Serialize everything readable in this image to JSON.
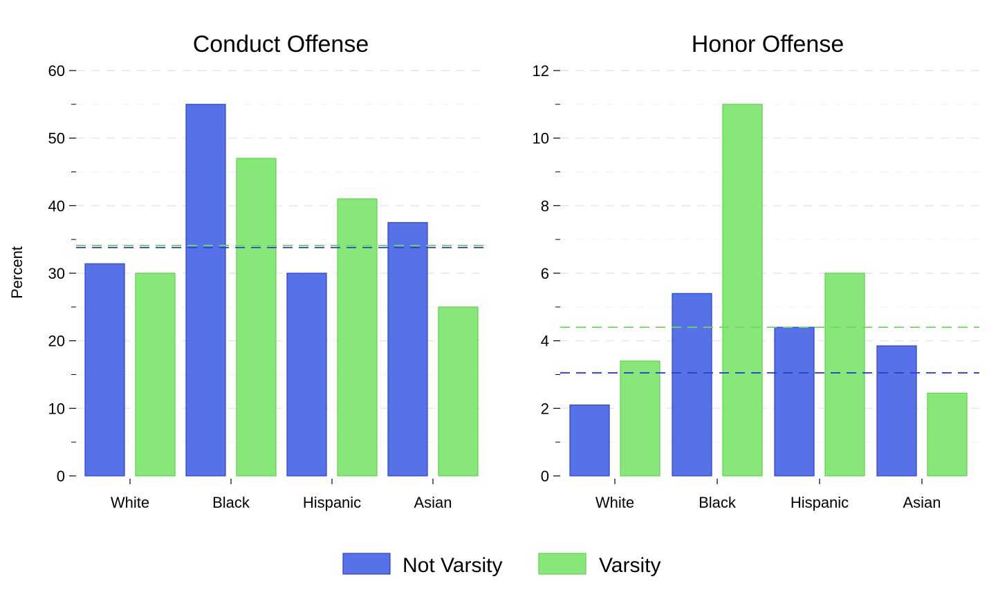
{
  "figure": {
    "ylabel": "Percent",
    "legend": [
      {
        "label": "Not Varsity",
        "color": "#5771e6"
      },
      {
        "label": "Varsity",
        "color": "#87e879"
      }
    ]
  },
  "chart_data": [
    {
      "type": "bar",
      "title": "Conduct Offense",
      "xlabel": "",
      "ylabel": "Percent",
      "ylim": [
        0,
        60
      ],
      "yticks": [
        0,
        10,
        20,
        30,
        40,
        50,
        60
      ],
      "categories": [
        "White",
        "Black",
        "Hispanic",
        "Asian"
      ],
      "series": [
        {
          "name": "Not Varsity",
          "values": [
            31.4,
            55,
            30,
            37.5
          ],
          "color": "#5771e6",
          "edge": "#2b3fd6"
        },
        {
          "name": "Varsity",
          "values": [
            30,
            47,
            41,
            25
          ],
          "color": "#87e879",
          "edge": "#5fd24d"
        }
      ],
      "reference_lines": [
        {
          "series": "Not Varsity",
          "value": 33.8,
          "color": "#2b3fd6",
          "style": "dashed"
        },
        {
          "series": "Varsity",
          "value": 34.1,
          "color": "#6cd85c",
          "style": "dashed"
        }
      ],
      "grid": true
    },
    {
      "type": "bar",
      "title": "Honor Offense",
      "xlabel": "",
      "ylabel": "",
      "ylim": [
        0,
        12
      ],
      "yticks": [
        0,
        2,
        4,
        6,
        8,
        10,
        12
      ],
      "categories": [
        "White",
        "Black",
        "Hispanic",
        "Asian"
      ],
      "series": [
        {
          "name": "Not Varsity",
          "values": [
            2.1,
            5.4,
            4.4,
            3.85
          ],
          "color": "#5771e6",
          "edge": "#2b3fd6"
        },
        {
          "name": "Varsity",
          "values": [
            3.4,
            11,
            6,
            2.45
          ],
          "color": "#87e879",
          "edge": "#5fd24d"
        }
      ],
      "reference_lines": [
        {
          "series": "Not Varsity",
          "value": 3.05,
          "color": "#2b3fd6",
          "style": "dashed"
        },
        {
          "series": "Varsity",
          "value": 4.4,
          "color": "#6cd85c",
          "style": "dashed"
        }
      ],
      "grid": true
    }
  ]
}
